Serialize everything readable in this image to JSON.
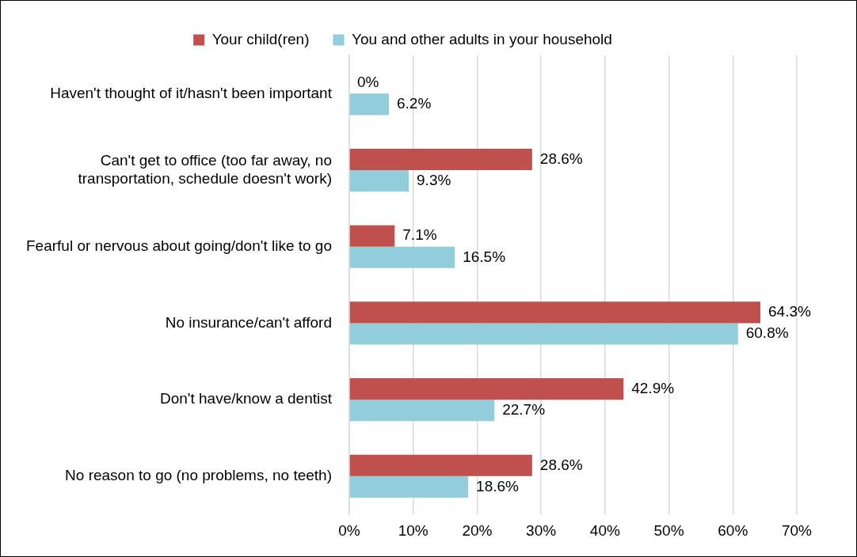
{
  "chart_data": {
    "type": "bar",
    "orientation": "horizontal",
    "categories": [
      "Haven't thought of it/hasn't been important",
      "Can't get to office (too far away, no transportation, schedule doesn't work)",
      "Fearful or nervous about going/don't like to go",
      "No insurance/can't afford",
      "Don't have/know a dentist",
      "No reason to go (no problems, no teeth)"
    ],
    "series": [
      {
        "name": "Your child(ren)",
        "color": "#c0504d",
        "values": [
          0,
          28.6,
          7.1,
          64.3,
          42.9,
          28.6
        ],
        "value_labels": [
          "0%",
          "28.6%",
          "7.1%",
          "64.3%",
          "42.9%",
          "28.6%"
        ]
      },
      {
        "name": "You and other adults in your household",
        "color": "#92cddc",
        "values": [
          6.2,
          9.3,
          16.5,
          60.8,
          22.7,
          18.6
        ],
        "value_labels": [
          "6.2%",
          "9.3%",
          "16.5%",
          "60.8%",
          "22.7%",
          "18.6%"
        ]
      }
    ],
    "xlim": [
      0,
      70
    ],
    "xticks": [
      {
        "value": 0,
        "label": "0%"
      },
      {
        "value": 10,
        "label": "10%"
      },
      {
        "value": 20,
        "label": "20%"
      },
      {
        "value": 30,
        "label": "30%"
      },
      {
        "value": 40,
        "label": "40%"
      },
      {
        "value": 50,
        "label": "50%"
      },
      {
        "value": 60,
        "label": "60%"
      },
      {
        "value": 70,
        "label": "70%"
      }
    ],
    "grid": "x",
    "legend": "top"
  }
}
